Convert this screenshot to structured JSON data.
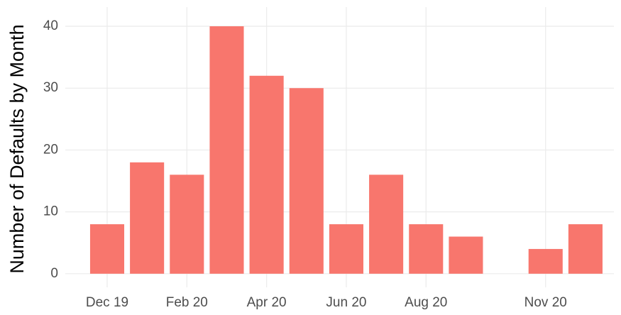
{
  "chart_data": {
    "type": "bar",
    "y_label": "Number of Defaults by Month",
    "categories": [
      "Dec 19",
      null,
      "Feb 20",
      null,
      "Apr 20",
      null,
      "Jun 20",
      null,
      "Aug 20",
      null,
      null,
      "Nov 20",
      null
    ],
    "values": [
      8,
      18,
      16,
      40,
      32,
      30,
      8,
      16,
      8,
      6,
      null,
      4,
      8
    ],
    "color": "#f8766d",
    "ylim": [
      -2.2,
      43.1
    ],
    "yticks": [
      0,
      10,
      20,
      30,
      40
    ],
    "grid": true
  }
}
